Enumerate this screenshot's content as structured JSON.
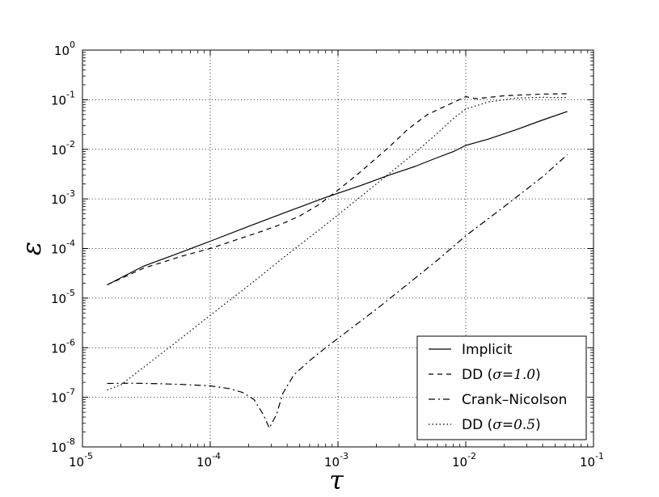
{
  "chart_data": {
    "type": "line",
    "xlabel": "τ",
    "ylabel": "ε",
    "xscale": "log",
    "yscale": "log",
    "xlim": [
      1e-05,
      0.1
    ],
    "ylim": [
      1e-08,
      1
    ],
    "grid": true,
    "legend_position": "bottom-right",
    "x_ticks": [
      {
        "value": 1e-05,
        "base": "10",
        "exp": "-5"
      },
      {
        "value": 0.0001,
        "base": "10",
        "exp": "-4"
      },
      {
        "value": 0.001,
        "base": "10",
        "exp": "-3"
      },
      {
        "value": 0.01,
        "base": "10",
        "exp": "-2"
      },
      {
        "value": 0.1,
        "base": "10",
        "exp": "-1"
      }
    ],
    "y_ticks": [
      {
        "value": 1e-08,
        "base": "10",
        "exp": "-8"
      },
      {
        "value": 1e-07,
        "base": "10",
        "exp": "-7"
      },
      {
        "value": 1e-06,
        "base": "10",
        "exp": "-6"
      },
      {
        "value": 1e-05,
        "base": "10",
        "exp": "-5"
      },
      {
        "value": 0.0001,
        "base": "10",
        "exp": "-4"
      },
      {
        "value": 0.001,
        "base": "10",
        "exp": "-3"
      },
      {
        "value": 0.01,
        "base": "10",
        "exp": "-2"
      },
      {
        "value": 0.1,
        "base": "10",
        "exp": "-1"
      },
      {
        "value": 1,
        "base": "10",
        "exp": "0"
      }
    ],
    "series": [
      {
        "name": "Implicit",
        "style": "solid",
        "color": "#000000",
        "points": [
          [
            1.56e-05,
            1.85e-05
          ],
          [
            3e-05,
            4.4e-05
          ],
          [
            6e-05,
            8.5e-05
          ],
          [
            0.0001,
            0.00014
          ],
          [
            0.0002,
            0.00028
          ],
          [
            0.0004,
            0.00055
          ],
          [
            0.0008,
            0.00107
          ],
          [
            0.0015,
            0.00185
          ],
          [
            0.0025,
            0.003
          ],
          [
            0.004,
            0.0045
          ],
          [
            0.006,
            0.0068
          ],
          [
            0.008,
            0.009
          ],
          [
            0.01,
            0.012
          ],
          [
            0.015,
            0.016
          ],
          [
            0.025,
            0.025
          ],
          [
            0.04,
            0.039
          ],
          [
            0.0625,
            0.058
          ]
        ]
      },
      {
        "name": "DD (σ=1.0)",
        "name_prefix": "DD (",
        "name_math": "σ=1.0",
        "name_suffix": ")",
        "style": "dashed",
        "color": "#000000",
        "points": [
          [
            1.56e-05,
            1.85e-05
          ],
          [
            3e-05,
            4e-05
          ],
          [
            6e-05,
            7e-05
          ],
          [
            0.0001,
            0.0001
          ],
          [
            0.00016,
            0.00015
          ],
          [
            0.00025,
            0.00022
          ],
          [
            0.00035,
            0.0003
          ],
          [
            0.0005,
            0.00045
          ],
          [
            0.0007,
            0.00075
          ],
          [
            0.001,
            0.0015
          ],
          [
            0.0015,
            0.0035
          ],
          [
            0.0025,
            0.011
          ],
          [
            0.0035,
            0.025
          ],
          [
            0.005,
            0.05
          ],
          [
            0.007,
            0.075
          ],
          [
            0.01,
            0.115
          ],
          [
            0.012,
            0.105
          ],
          [
            0.02,
            0.12
          ],
          [
            0.04,
            0.13
          ],
          [
            0.0625,
            0.132
          ]
        ]
      },
      {
        "name": "Crank–Nicolson",
        "style": "dashdot",
        "color": "#000000",
        "points": [
          [
            1.56e-05,
            1.9e-07
          ],
          [
            2.5e-05,
            1.92e-07
          ],
          [
            4e-05,
            1.88e-07
          ],
          [
            6e-05,
            1.82e-07
          ],
          [
            0.0001,
            1.7e-07
          ],
          [
            0.00014,
            1.5e-07
          ],
          [
            0.00018,
            1.25e-07
          ],
          [
            0.00022,
            9e-08
          ],
          [
            0.00026,
            4.5e-08
          ],
          [
            0.00029,
            2.4e-08
          ],
          [
            0.00033,
            4.5e-08
          ],
          [
            0.00037,
            1.2e-07
          ],
          [
            0.00045,
            2.8e-07
          ],
          [
            0.0006,
            5.5e-07
          ],
          [
            0.0008,
            1e-06
          ],
          [
            0.0012,
            2.2e-06
          ],
          [
            0.002,
            6e-06
          ],
          [
            0.0035,
            1.9e-05
          ],
          [
            0.006,
            5.8e-05
          ],
          [
            0.01,
            0.00018
          ],
          [
            0.02,
            0.0007
          ],
          [
            0.04,
            0.0028
          ],
          [
            0.0625,
            0.0078
          ]
        ]
      },
      {
        "name": "DD (σ=0.5)",
        "name_prefix": "DD (",
        "name_math": "σ=0.5",
        "name_suffix": ")",
        "style": "dotted",
        "color": "#000000",
        "points": [
          [
            1.56e-05,
            1.4e-07
          ],
          [
            2e-05,
            1.8e-07
          ],
          [
            3e-05,
            4e-07
          ],
          [
            5e-05,
            1.1e-06
          ],
          [
            0.0001,
            4.5e-06
          ],
          [
            0.0002,
            1.8e-05
          ],
          [
            0.0004,
            7.5e-05
          ],
          [
            0.0008,
            0.0003
          ],
          [
            0.0015,
            0.0011
          ],
          [
            0.0025,
            0.0032
          ],
          [
            0.004,
            0.0085
          ],
          [
            0.006,
            0.021
          ],
          [
            0.008,
            0.042
          ],
          [
            0.01,
            0.065
          ],
          [
            0.015,
            0.09
          ],
          [
            0.025,
            0.108
          ],
          [
            0.04,
            0.112
          ],
          [
            0.0625,
            0.11
          ]
        ]
      }
    ]
  }
}
